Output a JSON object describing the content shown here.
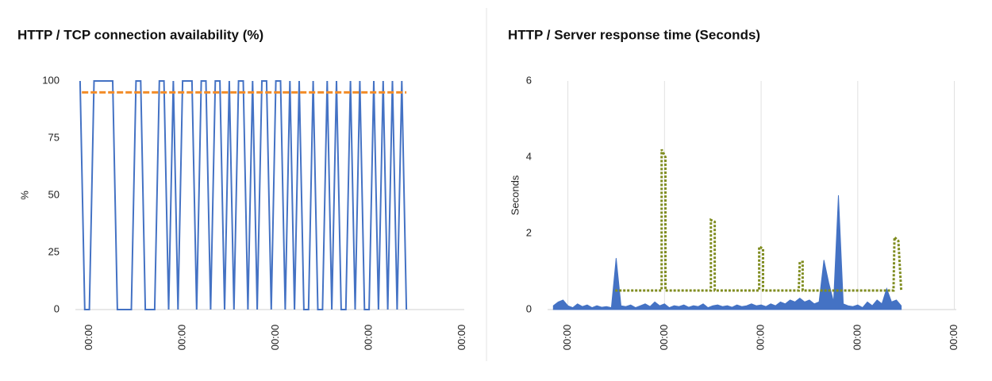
{
  "chart_data": [
    {
      "type": "line",
      "title": "HTTP / TCP connection availability (%)",
      "y_label": "%",
      "xlim": [
        -0.15,
        4.02
      ],
      "ylim": [
        0,
        100
      ],
      "xticks": [
        {
          "value": 0,
          "label": "00:00"
        },
        {
          "value": 1,
          "label": "00:00"
        },
        {
          "value": 2,
          "label": "00:00"
        },
        {
          "value": 3,
          "label": "00:00"
        },
        {
          "value": 4,
          "label": "00:00"
        }
      ],
      "yticks": [
        0,
        25,
        50,
        75,
        100
      ],
      "grid": false,
      "series": [
        {
          "color": "#4472c4",
          "style": "solid",
          "fill": false,
          "x": [
            -0.1,
            -0.05,
            0,
            0.05,
            0.1,
            0.15,
            0.2,
            0.25,
            0.3,
            0.35,
            0.4,
            0.45,
            0.5,
            0.55,
            0.6,
            0.65,
            0.7,
            0.75,
            0.8,
            0.85,
            0.9,
            0.95,
            1,
            1.05,
            1.1,
            1.15,
            1.2,
            1.25,
            1.3,
            1.35,
            1.4,
            1.45,
            1.5,
            1.55,
            1.6,
            1.65,
            1.7,
            1.75,
            1.8,
            1.85,
            1.9,
            1.95,
            2,
            2.05,
            2.1,
            2.15,
            2.2,
            2.25,
            2.3,
            2.35,
            2.4,
            2.45,
            2.5,
            2.55,
            2.6,
            2.65,
            2.7,
            2.75,
            2.8,
            2.85,
            2.9,
            2.95,
            3,
            3.05,
            3.1,
            3.15,
            3.2,
            3.25,
            3.3,
            3.35,
            3.4
          ],
          "values": [
            100,
            0,
            0,
            100,
            100,
            100,
            100,
            100,
            0,
            0,
            0,
            0,
            100,
            100,
            0,
            0,
            0,
            100,
            100,
            0,
            100,
            0,
            100,
            100,
            100,
            0,
            100,
            100,
            0,
            100,
            100,
            0,
            100,
            0,
            100,
            100,
            0,
            100,
            0,
            100,
            100,
            0,
            100,
            100,
            0,
            100,
            0,
            100,
            0,
            0,
            100,
            0,
            0,
            100,
            0,
            100,
            0,
            0,
            100,
            0,
            100,
            0,
            0,
            100,
            0,
            100,
            0,
            100,
            0,
            100,
            0
          ]
        },
        {
          "color": "#f28c28",
          "style": "dashed",
          "fill": false,
          "x": [
            -0.08,
            3.4
          ],
          "values": [
            95,
            95
          ]
        }
      ]
    },
    {
      "type": "line",
      "title": "HTTP / Server response time (Seconds)",
      "y_label": "Seconds",
      "xlim": [
        -0.21,
        4.02
      ],
      "ylim": [
        0,
        6
      ],
      "xticks": [
        {
          "value": 0,
          "label": "00:00"
        },
        {
          "value": 1,
          "label": "00:00"
        },
        {
          "value": 2,
          "label": "00:00"
        },
        {
          "value": 3,
          "label": "00:00"
        },
        {
          "value": 4,
          "label": "00:00"
        }
      ],
      "yticks": [
        0,
        2,
        4,
        6
      ],
      "grid": "x",
      "series": [
        {
          "color": "#4472c4",
          "style": "solid",
          "fill": true,
          "x": [
            -0.15,
            -0.1,
            -0.05,
            0,
            0.05,
            0.1,
            0.15,
            0.2,
            0.25,
            0.3,
            0.35,
            0.4,
            0.45,
            0.5,
            0.55,
            0.6,
            0.65,
            0.7,
            0.75,
            0.8,
            0.85,
            0.9,
            0.95,
            1,
            1.05,
            1.1,
            1.15,
            1.2,
            1.25,
            1.3,
            1.35,
            1.4,
            1.45,
            1.5,
            1.55,
            1.6,
            1.65,
            1.7,
            1.75,
            1.8,
            1.85,
            1.9,
            1.95,
            2,
            2.05,
            2.1,
            2.15,
            2.2,
            2.25,
            2.3,
            2.35,
            2.4,
            2.45,
            2.5,
            2.55,
            2.6,
            2.65,
            2.7,
            2.75,
            2.8,
            2.85,
            2.9,
            2.95,
            3,
            3.05,
            3.1,
            3.15,
            3.2,
            3.25,
            3.3,
            3.35,
            3.4,
            3.45
          ],
          "values": [
            0.1,
            0.2,
            0.25,
            0.1,
            0.05,
            0.15,
            0.08,
            0.12,
            0.05,
            0.1,
            0.06,
            0.08,
            0.05,
            1.35,
            0.1,
            0.08,
            0.12,
            0.05,
            0.1,
            0.15,
            0.08,
            0.2,
            0.1,
            0.15,
            0.05,
            0.1,
            0.08,
            0.12,
            0.06,
            0.1,
            0.08,
            0.15,
            0.05,
            0.1,
            0.12,
            0.08,
            0.1,
            0.06,
            0.12,
            0.08,
            0.1,
            0.15,
            0.1,
            0.12,
            0.08,
            0.15,
            0.1,
            0.2,
            0.15,
            0.25,
            0.2,
            0.3,
            0.2,
            0.25,
            0.15,
            0.2,
            1.3,
            0.7,
            0.2,
            3.0,
            0.15,
            0.1,
            0.08,
            0.12,
            0.05,
            0.2,
            0.1,
            0.25,
            0.15,
            0.55,
            0.2,
            0.25,
            0.1
          ]
        },
        {
          "color": "#7f8c1f",
          "style": "dotted",
          "fill": false,
          "x": [
            0.49,
            0.97,
            0.97,
            1.01,
            1.01,
            1.48,
            1.48,
            1.52,
            1.52,
            1.98,
            1.98,
            2.02,
            2.02,
            2.39,
            2.4,
            2.43,
            2.43,
            3.37,
            3.38,
            3.42,
            3.45
          ],
          "values": [
            0.5,
            0.5,
            4.2,
            4.0,
            0.5,
            0.5,
            2.35,
            2.3,
            0.5,
            0.5,
            1.65,
            1.6,
            0.5,
            0.5,
            1.25,
            1.25,
            0.5,
            0.5,
            1.9,
            1.8,
            0.5
          ]
        }
      ]
    }
  ]
}
